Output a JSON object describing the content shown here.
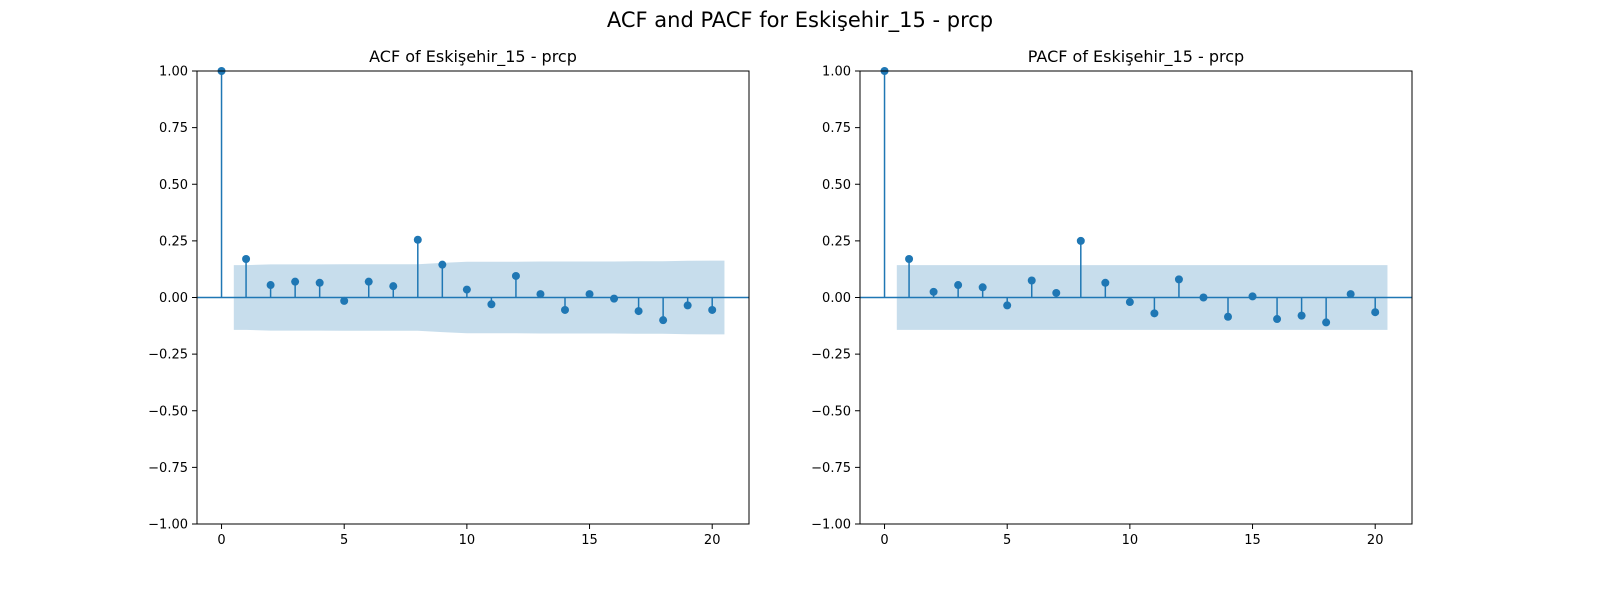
{
  "figure": {
    "suptitle": "ACF and PACF for Eskişehir_15 - prcp"
  },
  "colors": {
    "stem": "#1f77b4",
    "confidence_band": "#1f77b4",
    "axes": "#000000",
    "background": "#ffffff"
  },
  "chart_data": [
    {
      "type": "scatter",
      "style": "stem",
      "title": "ACF of Eskişehir_15 - prcp",
      "xlabel": "",
      "ylabel": "",
      "xlim": [
        -1,
        21.5
      ],
      "ylim": [
        -1.0,
        1.0
      ],
      "xticks": [
        0,
        5,
        10,
        15,
        20
      ],
      "xtick_labels": [
        "0",
        "5",
        "10",
        "15",
        "20"
      ],
      "yticks": [
        -1.0,
        -0.75,
        -0.5,
        -0.25,
        0.0,
        0.25,
        0.5,
        0.75,
        1.0
      ],
      "ytick_labels": [
        "−1.00",
        "−0.75",
        "−0.50",
        "−0.25",
        "0.00",
        "0.25",
        "0.50",
        "0.75",
        "1.00"
      ],
      "grid": false,
      "lags": [
        0,
        1,
        2,
        3,
        4,
        5,
        6,
        7,
        8,
        9,
        10,
        11,
        12,
        13,
        14,
        15,
        16,
        17,
        18,
        19,
        20
      ],
      "values": [
        1.0,
        0.17,
        0.055,
        0.07,
        0.065,
        -0.015,
        0.07,
        0.05,
        0.255,
        0.145,
        0.035,
        -0.03,
        0.095,
        0.015,
        -0.055,
        0.015,
        -0.005,
        -0.06,
        -0.1,
        -0.035,
        -0.055
      ],
      "confidence_band": {
        "x": [
          0.5,
          1,
          2,
          3,
          4,
          5,
          6,
          7,
          8,
          9,
          10,
          11,
          12,
          13,
          14,
          15,
          16,
          17,
          18,
          19,
          20,
          20.5
        ],
        "upper": [
          0.143,
          0.143,
          0.146,
          0.146,
          0.146,
          0.147,
          0.147,
          0.147,
          0.147,
          0.153,
          0.158,
          0.158,
          0.158,
          0.159,
          0.159,
          0.159,
          0.159,
          0.16,
          0.16,
          0.162,
          0.163,
          0.163
        ]
      }
    },
    {
      "type": "scatter",
      "style": "stem",
      "title": "PACF of Eskişehir_15 - prcp",
      "xlabel": "",
      "ylabel": "",
      "xlim": [
        -1,
        21.5
      ],
      "ylim": [
        -1.0,
        1.0
      ],
      "xticks": [
        0,
        5,
        10,
        15,
        20
      ],
      "xtick_labels": [
        "0",
        "5",
        "10",
        "15",
        "20"
      ],
      "yticks": [
        -1.0,
        -0.75,
        -0.5,
        -0.25,
        0.0,
        0.25,
        0.5,
        0.75,
        1.0
      ],
      "ytick_labels": [
        "−1.00",
        "−0.75",
        "−0.50",
        "−0.25",
        "0.00",
        "0.25",
        "0.50",
        "0.75",
        "1.00"
      ],
      "grid": false,
      "lags": [
        0,
        1,
        2,
        3,
        4,
        5,
        6,
        7,
        8,
        9,
        10,
        11,
        12,
        13,
        14,
        15,
        16,
        17,
        18,
        19,
        20
      ],
      "values": [
        1.0,
        0.17,
        0.025,
        0.055,
        0.045,
        -0.035,
        0.075,
        0.02,
        0.25,
        0.065,
        -0.02,
        -0.07,
        0.08,
        0.0,
        -0.085,
        0.005,
        -0.095,
        -0.08,
        -0.11,
        0.015,
        -0.065
      ],
      "confidence_band": {
        "x": [
          0.5,
          20.5
        ],
        "upper": [
          0.143,
          0.143
        ]
      }
    }
  ]
}
